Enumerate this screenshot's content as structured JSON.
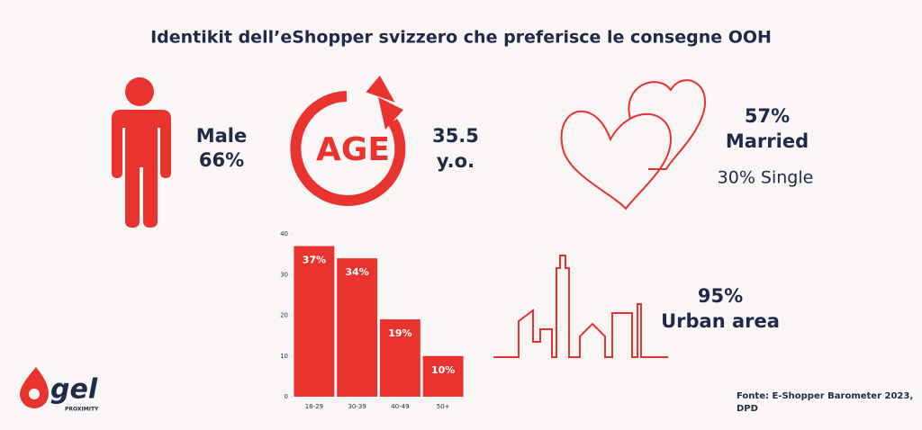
{
  "title": "Identikit dell’eShopper svizzero che preferisce le consegne OOH",
  "gender": {
    "label": "Male",
    "share": "66%"
  },
  "age": {
    "icon": "AGE",
    "value": "35.5",
    "unit": "y.o."
  },
  "status": {
    "married_share": "57%",
    "married": "Married",
    "single": "30% Single"
  },
  "urban": {
    "share": "95%",
    "label": "Urban area"
  },
  "source": [
    "Fonte: E-Shopper Barometer 2023,",
    "DPD"
  ],
  "logo": {
    "name": "gel",
    "tagline": "PROXIMITY"
  },
  "chart_data": {
    "type": "bar",
    "categories": [
      "18-29",
      "30-39",
      "40-49",
      "50+"
    ],
    "values": [
      37,
      34,
      19,
      10
    ],
    "value_labels": [
      "37%",
      "34%",
      "19%",
      "10%"
    ],
    "color": "#e8332f",
    "ylim": [
      0,
      40
    ],
    "yticks": [
      0,
      10,
      20,
      30,
      40
    ]
  }
}
